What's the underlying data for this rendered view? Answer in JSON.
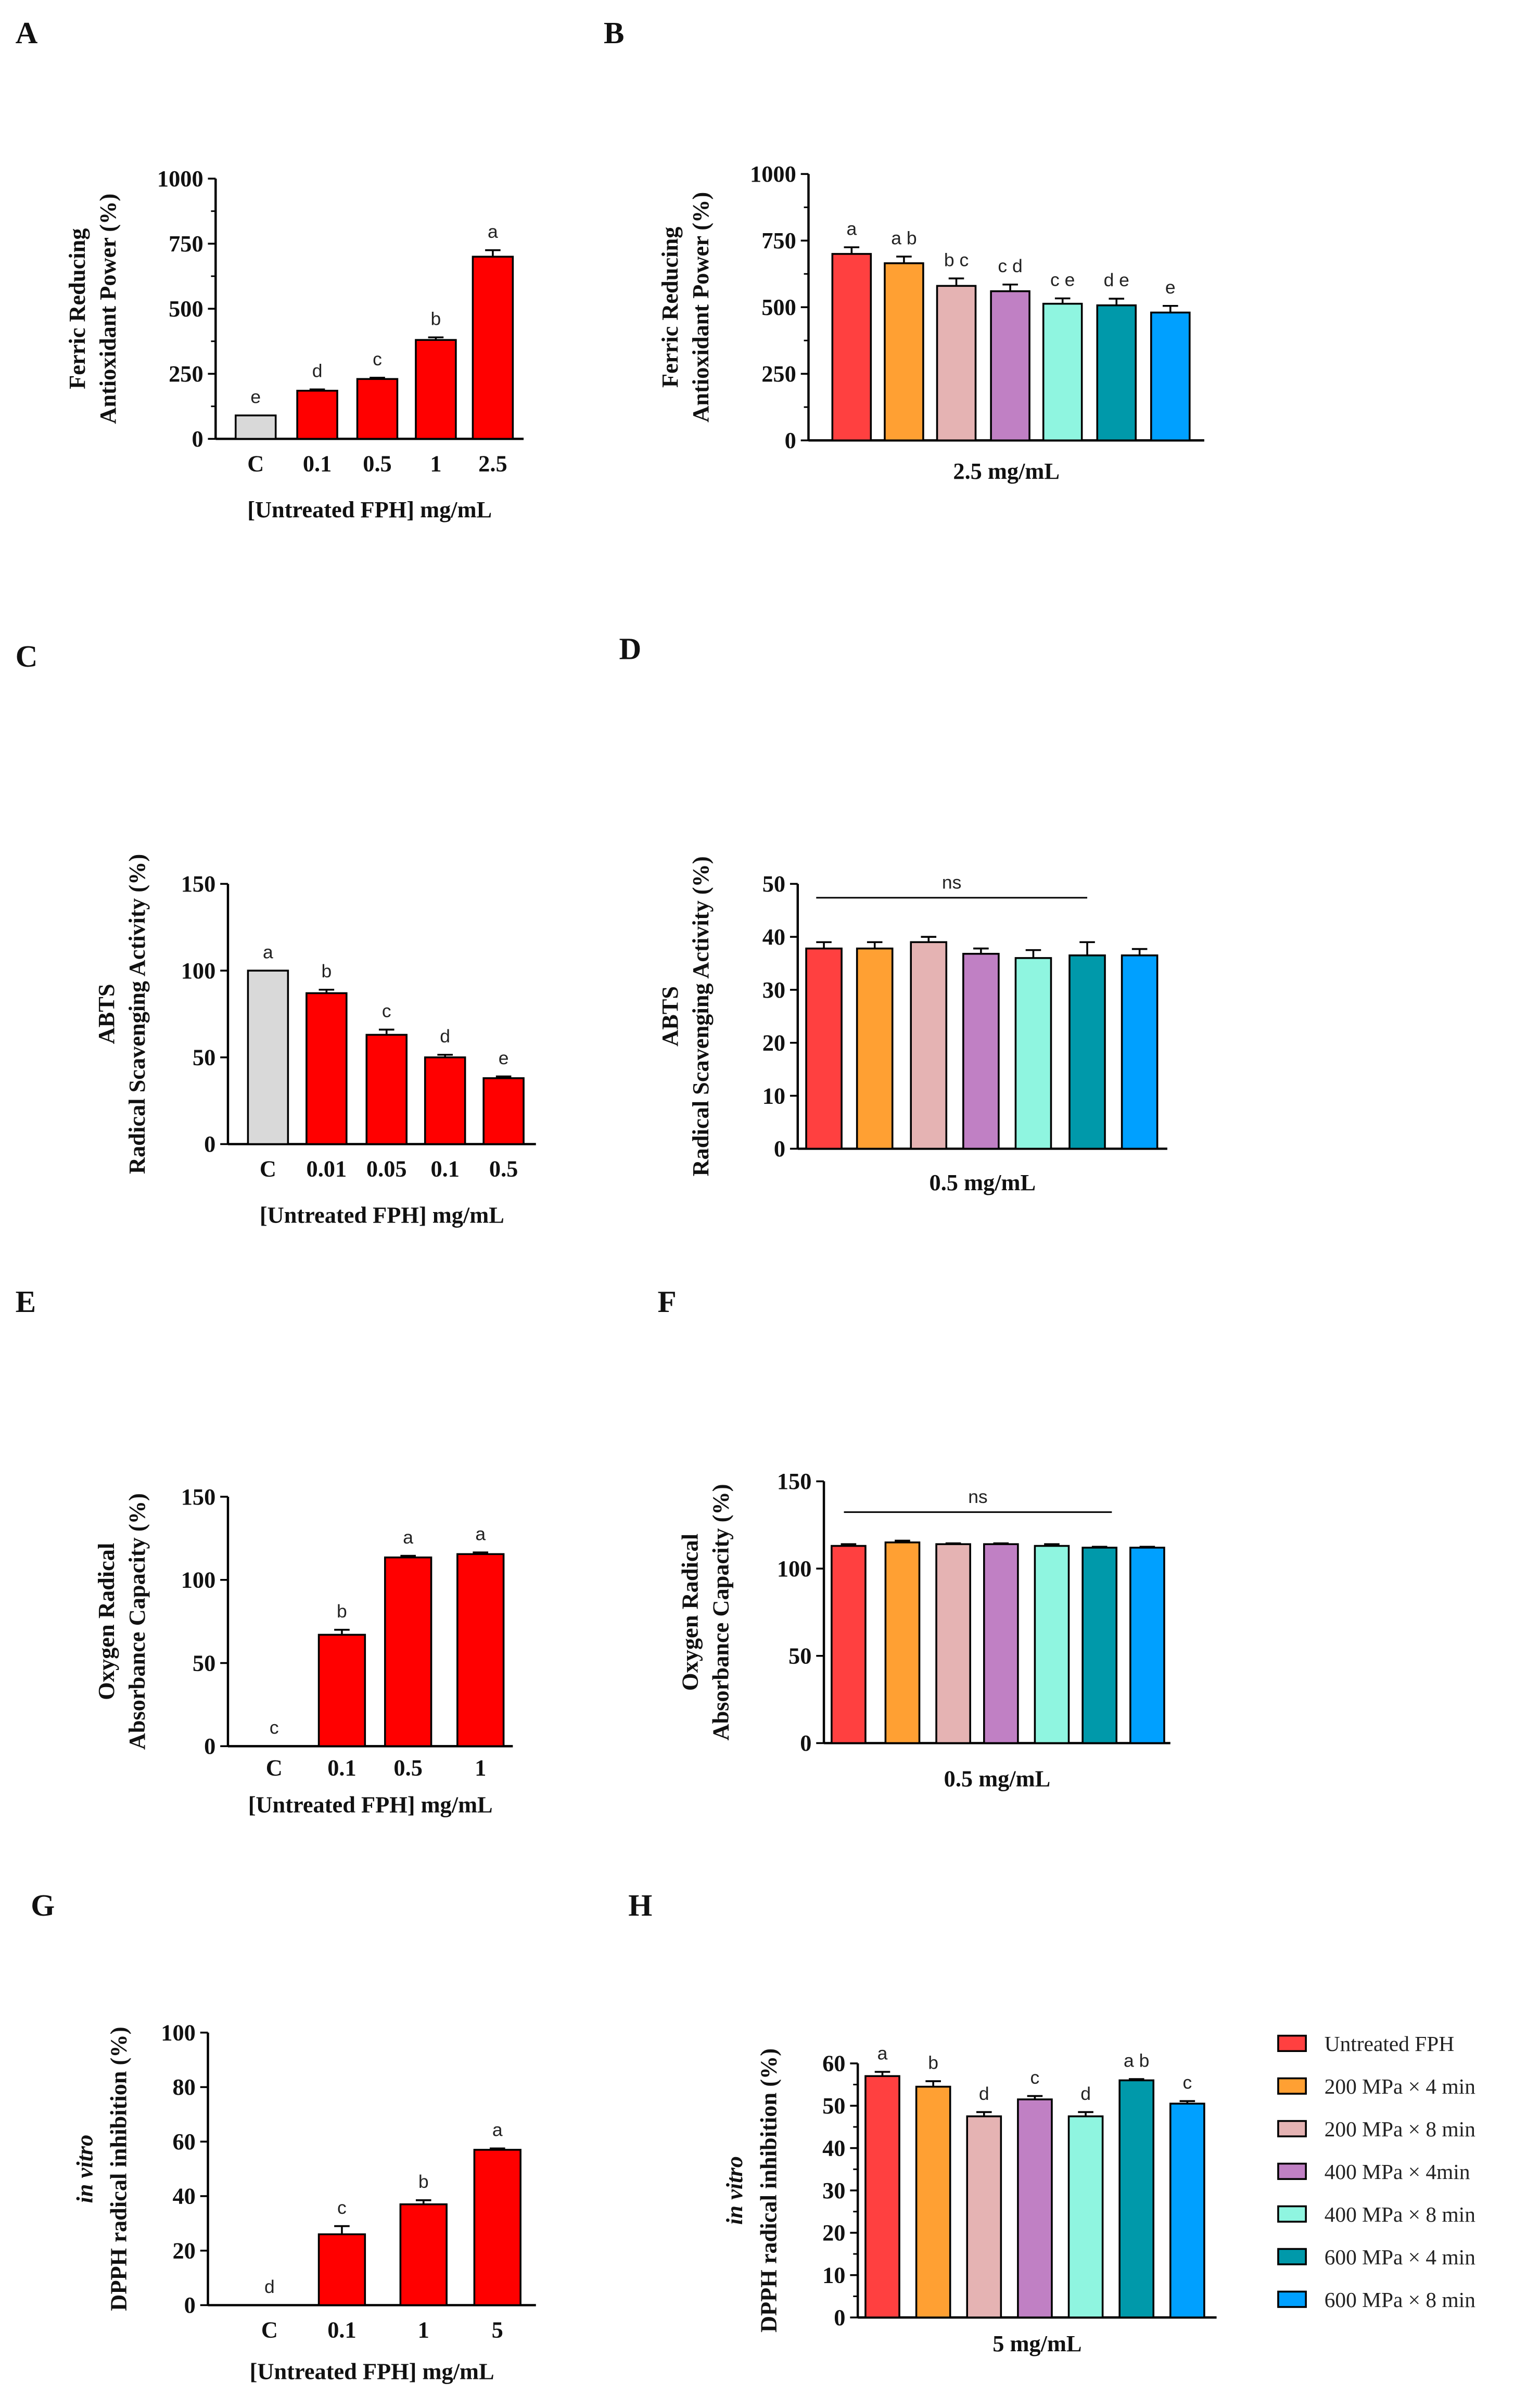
{
  "colors": {
    "untreated_bar": "#FF0000",
    "control_bar": "#D9D9D9",
    "series": [
      "#FF4040",
      "#FFA033",
      "#E5B3B3",
      "#C080C4",
      "#8FF5E0",
      "#0099AA",
      "#00A0FF"
    ]
  },
  "legend": [
    "Untreated FPH",
    "200 MPa × 4 min",
    "200 MPa × 8 min",
    "400 MPa × 4min",
    "400 MPa × 8 min",
    "600 MPa × 4 min",
    "600 MPa × 8 min"
  ],
  "chart_data": [
    {
      "panel": "A",
      "type": "bar",
      "ylabel": [
        "Ferric Reducing",
        "Antioxidant Power (%)"
      ],
      "xlabel": "[Untreated FPH] mg/mL",
      "categories": [
        "C",
        "0.1",
        "0.5",
        "1",
        "2.5"
      ],
      "values": [
        90,
        185,
        230,
        380,
        700
      ],
      "errors": [
        0,
        5,
        5,
        10,
        25
      ],
      "letters": [
        "e",
        "d",
        "c",
        "b",
        "a"
      ],
      "ylim": [
        0,
        1000
      ],
      "yticks": [
        0,
        250,
        500,
        750,
        1000
      ]
    },
    {
      "panel": "B",
      "type": "bar",
      "ylabel": [
        "Ferric Reducing",
        "Antioxidant Power (%)"
      ],
      "xlabel": "2.5 mg/mL",
      "categories": [
        "Untreated FPH",
        "200 MPa × 4 min",
        "200 MPa × 8 min",
        "400 MPa × 4min",
        "400 MPa × 8 min",
        "600 MPa × 4 min",
        "600 MPa × 8 min"
      ],
      "values": [
        700,
        665,
        580,
        560,
        513,
        507,
        480
      ],
      "errors": [
        25,
        25,
        28,
        25,
        20,
        25,
        25
      ],
      "letters": [
        "a",
        "a b",
        "b c",
        "c d",
        "c e",
        "d e",
        "e"
      ],
      "ylim": [
        0,
        1000
      ],
      "yticks": [
        0,
        250,
        500,
        750,
        1000
      ]
    },
    {
      "panel": "C",
      "type": "bar",
      "ylabel": [
        "ABTS",
        "Radical Scavenging Activity (%)"
      ],
      "xlabel": "[Untreated FPH] mg/mL",
      "categories": [
        "C",
        "0.01",
        "0.05",
        "0.1",
        "0.5"
      ],
      "values": [
        100,
        87,
        63,
        50,
        38
      ],
      "errors": [
        0,
        2,
        3,
        1.5,
        1
      ],
      "letters": [
        "a",
        "b",
        "c",
        "d",
        "e"
      ],
      "ylim": [
        0,
        150
      ],
      "yticks": [
        0,
        50,
        100,
        150
      ]
    },
    {
      "panel": "D",
      "type": "bar",
      "ylabel": [
        "ABTS",
        "Radical Scavenging Activity (%)"
      ],
      "xlabel": "0.5 mg/mL",
      "categories": [
        "Untreated FPH",
        "200 MPa × 4 min",
        "200 MPa × 8 min",
        "400 MPa × 4min",
        "400 MPa × 8 min",
        "600 MPa × 4 min",
        "600 MPa × 8 min"
      ],
      "values": [
        37.8,
        37.8,
        39,
        36.8,
        36,
        36.5,
        36.5
      ],
      "errors": [
        1.2,
        1.2,
        1,
        1,
        1.5,
        2.5,
        1.2
      ],
      "annotation": "ns",
      "ylim": [
        0,
        50
      ],
      "yticks": [
        0,
        10,
        20,
        30,
        40,
        50
      ]
    },
    {
      "panel": "E",
      "type": "bar",
      "ylabel": [
        "Oxygen Radical",
        "Absorbance Capacity (%)"
      ],
      "xlabel": "[Untreated FPH] mg/mL",
      "categories": [
        "C",
        "0.1",
        "0.5",
        "1"
      ],
      "values": [
        0,
        67,
        113.5,
        115.5
      ],
      "errors": [
        0,
        3,
        1,
        1
      ],
      "letters": [
        "c",
        "b",
        "a",
        "a"
      ],
      "ylim": [
        0,
        150
      ],
      "yticks": [
        0,
        50,
        100,
        150
      ]
    },
    {
      "panel": "F",
      "type": "bar",
      "ylabel": [
        "Oxygen Radical",
        "Absorbance Capacity (%)"
      ],
      "xlabel": "0.5 mg/mL",
      "categories": [
        "Untreated FPH",
        "200 MPa × 4 min",
        "200 MPa × 8 min",
        "400 MPa × 4min",
        "400 MPa × 8 min",
        "600 MPa × 4 min",
        "600 MPa × 8 min"
      ],
      "values": [
        113,
        115,
        114,
        114,
        113,
        112,
        112
      ],
      "errors": [
        1,
        1,
        0.5,
        0.5,
        1,
        0.5,
        0.5
      ],
      "annotation": "ns",
      "ylim": [
        0,
        150
      ],
      "yticks": [
        0,
        50,
        100,
        150
      ]
    },
    {
      "panel": "G",
      "type": "bar",
      "ylabel": [
        "in vitro",
        "DPPH radical inhibition (%)"
      ],
      "xlabel": "[Untreated FPH] mg/mL",
      "categories": [
        "C",
        "0.1",
        "1",
        "5"
      ],
      "values": [
        0,
        26,
        37,
        57
      ],
      "errors": [
        0,
        3,
        1.5,
        0.5
      ],
      "letters": [
        "d",
        "c",
        "b",
        "a"
      ],
      "ylim": [
        0,
        100
      ],
      "yticks": [
        0,
        20,
        40,
        60,
        80,
        100
      ]
    },
    {
      "panel": "H",
      "type": "bar",
      "ylabel": [
        "in vitro",
        "DPPH radical inhibition (%)"
      ],
      "xlabel": "5 mg/mL",
      "categories": [
        "Untreated FPH",
        "200 MPa × 4 min",
        "200 MPa × 8 min",
        "400 MPa × 4min",
        "400 MPa × 8 min",
        "600 MPa × 4 min",
        "600 MPa × 8 min"
      ],
      "values": [
        57,
        54.5,
        47.5,
        51.5,
        47.5,
        56,
        50.5
      ],
      "errors": [
        1,
        1.3,
        1,
        0.8,
        1,
        0.3,
        0.6
      ],
      "letters": [
        "a",
        "b",
        "d",
        "c",
        "d",
        "a b",
        "c"
      ],
      "ylim": [
        0,
        60
      ],
      "yticks": [
        0,
        10,
        20,
        30,
        40,
        50,
        60
      ]
    }
  ]
}
